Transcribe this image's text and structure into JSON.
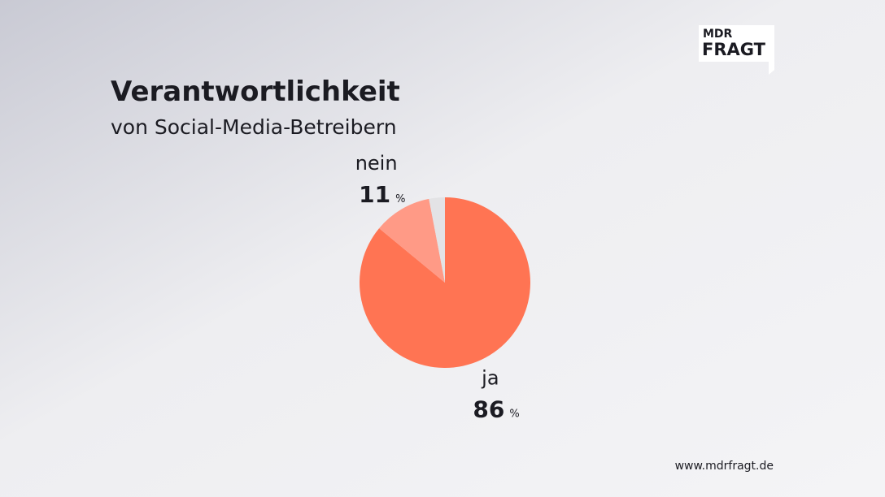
{
  "chart_data": {
    "type": "pie",
    "title": "Verantwortlichkeit",
    "subtitle": "von Social-Media-Betreibern",
    "categories": [
      "ja",
      "nein",
      null
    ],
    "values": [
      86,
      11,
      3
    ],
    "colors": [
      "#ff7453",
      "#ff9a86",
      "#e3e3e5"
    ],
    "unit_label": "%"
  },
  "logo": {
    "top": "MDR",
    "bottom": "FRAGT"
  },
  "footer_url": "www.mdrfragt.de"
}
